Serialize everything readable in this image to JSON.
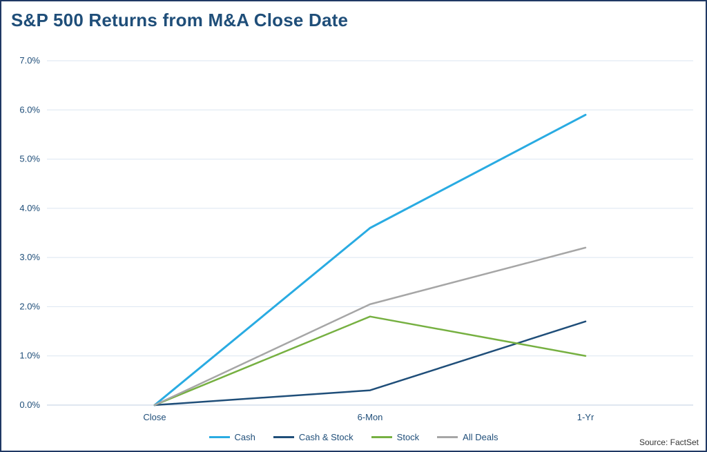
{
  "title": "S&P 500 Returns from M&A Close Date",
  "source": "Source: FactSet",
  "colors": {
    "title_text": "#1F4E79",
    "tick_text": "#1F4E79",
    "gridline": "#DBE5F1",
    "axis_line": "#BFCFE0",
    "border": "#1F3864",
    "source_text": "#333333"
  },
  "chart_data": {
    "type": "line",
    "categories": [
      "Close",
      "6-Mon",
      "1-Yr"
    ],
    "series": [
      {
        "name": "Cash",
        "color": "#29ABE2",
        "values": [
          0.0,
          3.6,
          5.9
        ]
      },
      {
        "name": "Cash & Stock",
        "color": "#1F4E79",
        "values": [
          0.0,
          0.3,
          1.7
        ]
      },
      {
        "name": "Stock",
        "color": "#76B041",
        "values": [
          0.0,
          1.8,
          1.0
        ]
      },
      {
        "name": "All Deals",
        "color": "#A6A6A6",
        "values": [
          0.0,
          2.05,
          3.2
        ]
      }
    ],
    "ylim": [
      0.0,
      7.0
    ],
    "ytick_step": 1.0,
    "ytick_format": "percent_1dp",
    "grid": true,
    "legend_position": "bottom"
  }
}
